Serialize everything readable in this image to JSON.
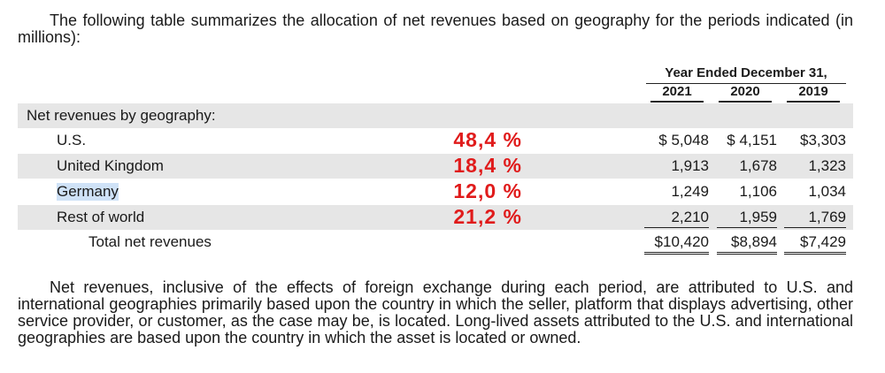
{
  "intro": "The following table summarizes the allocation of net revenues based on geography for the periods indicated (in millions):",
  "table": {
    "caption": "Year Ended December 31,",
    "years": [
      "2021",
      "2020",
      "2019"
    ],
    "section_label": "Net revenues by geography:",
    "rows": [
      {
        "label": "U.S.",
        "percent": "48,4 %",
        "v2021": "$ 5,048",
        "v2020": "$ 4,151",
        "v2019": "$3,303"
      },
      {
        "label": "United Kingdom",
        "percent": "18,4 %",
        "v2021": "1,913",
        "v2020": "1,678",
        "v2019": "1,323"
      },
      {
        "label": "Germany",
        "percent": "12,0 %",
        "v2021": "1,249",
        "v2020": "1,106",
        "v2019": "1,034"
      },
      {
        "label": "Rest of world",
        "percent": "21,2 %",
        "v2021": "2,210",
        "v2020": "1,959",
        "v2019": "1,769"
      }
    ],
    "total": {
      "label": "Total net revenues",
      "v2021": "$10,420",
      "v2020": "$8,894",
      "v2019": "$7,429"
    }
  },
  "outro": "Net revenues, inclusive of the effects of foreign exchange during each period, are attributed to U.S. and international geographies primarily based upon the country in which the seller, platform that displays advertising, other service provider, or customer, as the case may be, is located. Long-lived assets attributed to the U.S. and international geographies are based upon the country in which the asset is located or owned.",
  "colors": {
    "percent_annotation": "#e01b1b",
    "row_shade": "#e6e6e6",
    "selection_highlight": "#cfe2f7"
  }
}
